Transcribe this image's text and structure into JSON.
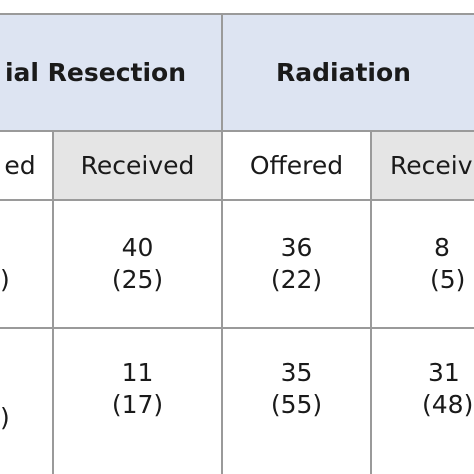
{
  "header": {
    "group_left": "ial Resection",
    "group_right": "Radiation"
  },
  "subheader": {
    "col0": "ed",
    "col1": "Received",
    "col2": "Offered",
    "col3": "Receiv"
  },
  "rows": [
    {
      "c1_n": "40",
      "c1_p": "(25)",
      "c2_n": "36",
      "c2_p": "(22)",
      "c3_n": "8",
      "c3_p": "(5)",
      "c0_p": ")"
    },
    {
      "c1_n": "11",
      "c1_p": "(17)",
      "c2_n": "35",
      "c2_p": "(55)",
      "c3_n": "31",
      "c3_p": "(48)",
      "c0_p": ")"
    }
  ]
}
